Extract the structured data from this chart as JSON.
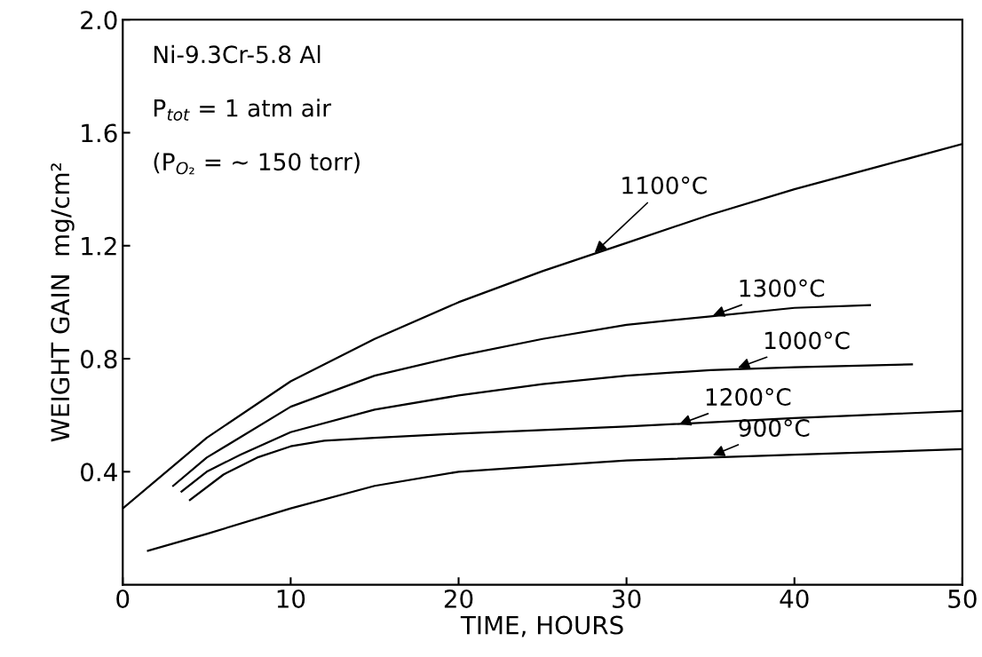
{
  "chart_data": {
    "type": "line",
    "xlabel": "TIME, HOURS",
    "ylabel": "WEIGHT GAIN  mg/cm²",
    "xlim": [
      0,
      50
    ],
    "ylim": [
      0,
      2.0
    ],
    "xticks": [
      0,
      10,
      20,
      30,
      40,
      50
    ],
    "yticks": [
      {
        "value": 0.4,
        "label": "0.4"
      },
      {
        "value": 0.8,
        "label": "0.8"
      },
      {
        "value": 1.2,
        "label": "1.2"
      },
      {
        "value": 1.6,
        "label": "1.6"
      },
      {
        "value": 2.0,
        "label": "2.0"
      }
    ],
    "grid": false,
    "legend": false,
    "marker": "none",
    "line_style": "solid",
    "series": [
      {
        "color": "#000000",
        "x": [
          0,
          2,
          5,
          10,
          15,
          20,
          25,
          30,
          35,
          40,
          45,
          50
        ],
        "values": [
          0.27,
          0.37,
          0.52,
          0.72,
          0.87,
          1.0,
          1.11,
          1.21,
          1.31,
          1.4,
          1.48,
          1.56
        ]
      },
      {
        "color": "#000000",
        "x": [
          3,
          5,
          10,
          15,
          20,
          25,
          30,
          35,
          40,
          44.5
        ],
        "values": [
          0.35,
          0.45,
          0.63,
          0.74,
          0.81,
          0.87,
          0.92,
          0.95,
          0.98,
          0.99
        ]
      },
      {
        "color": "#000000",
        "x": [
          3.5,
          5,
          7,
          10,
          15,
          20,
          25,
          30,
          35,
          40,
          47
        ],
        "values": [
          0.33,
          0.4,
          0.46,
          0.54,
          0.62,
          0.67,
          0.71,
          0.74,
          0.76,
          0.77,
          0.78
        ]
      },
      {
        "color": "#000000",
        "x": [
          4,
          6,
          8,
          10,
          12,
          15,
          20,
          30,
          40,
          50
        ],
        "values": [
          0.3,
          0.39,
          0.45,
          0.49,
          0.51,
          0.52,
          0.535,
          0.56,
          0.59,
          0.615
        ]
      },
      {
        "color": "#000000",
        "x": [
          1.5,
          5,
          10,
          15,
          20,
          25,
          30,
          40,
          50
        ],
        "values": [
          0.12,
          0.18,
          0.27,
          0.35,
          0.4,
          0.42,
          0.44,
          0.46,
          0.48
        ]
      }
    ],
    "annotations": [
      "Ni-9.3Cr-5.8 Al",
      "P$_{tot}$ = 1 atm air",
      "(P$_{O₂}$ = ∼ 150 torr)",
      {
        "text": "1100°C",
        "x": 28,
        "y": 1.17
      },
      {
        "text": "1300°C",
        "x": 35,
        "y": 0.95
      },
      {
        "text": "1000°C",
        "x": 36.5,
        "y": 0.765
      },
      {
        "text": "1200°C",
        "x": 33,
        "y": 0.565
      },
      {
        "text": "900°C",
        "x": 35,
        "y": 0.455
      }
    ]
  }
}
